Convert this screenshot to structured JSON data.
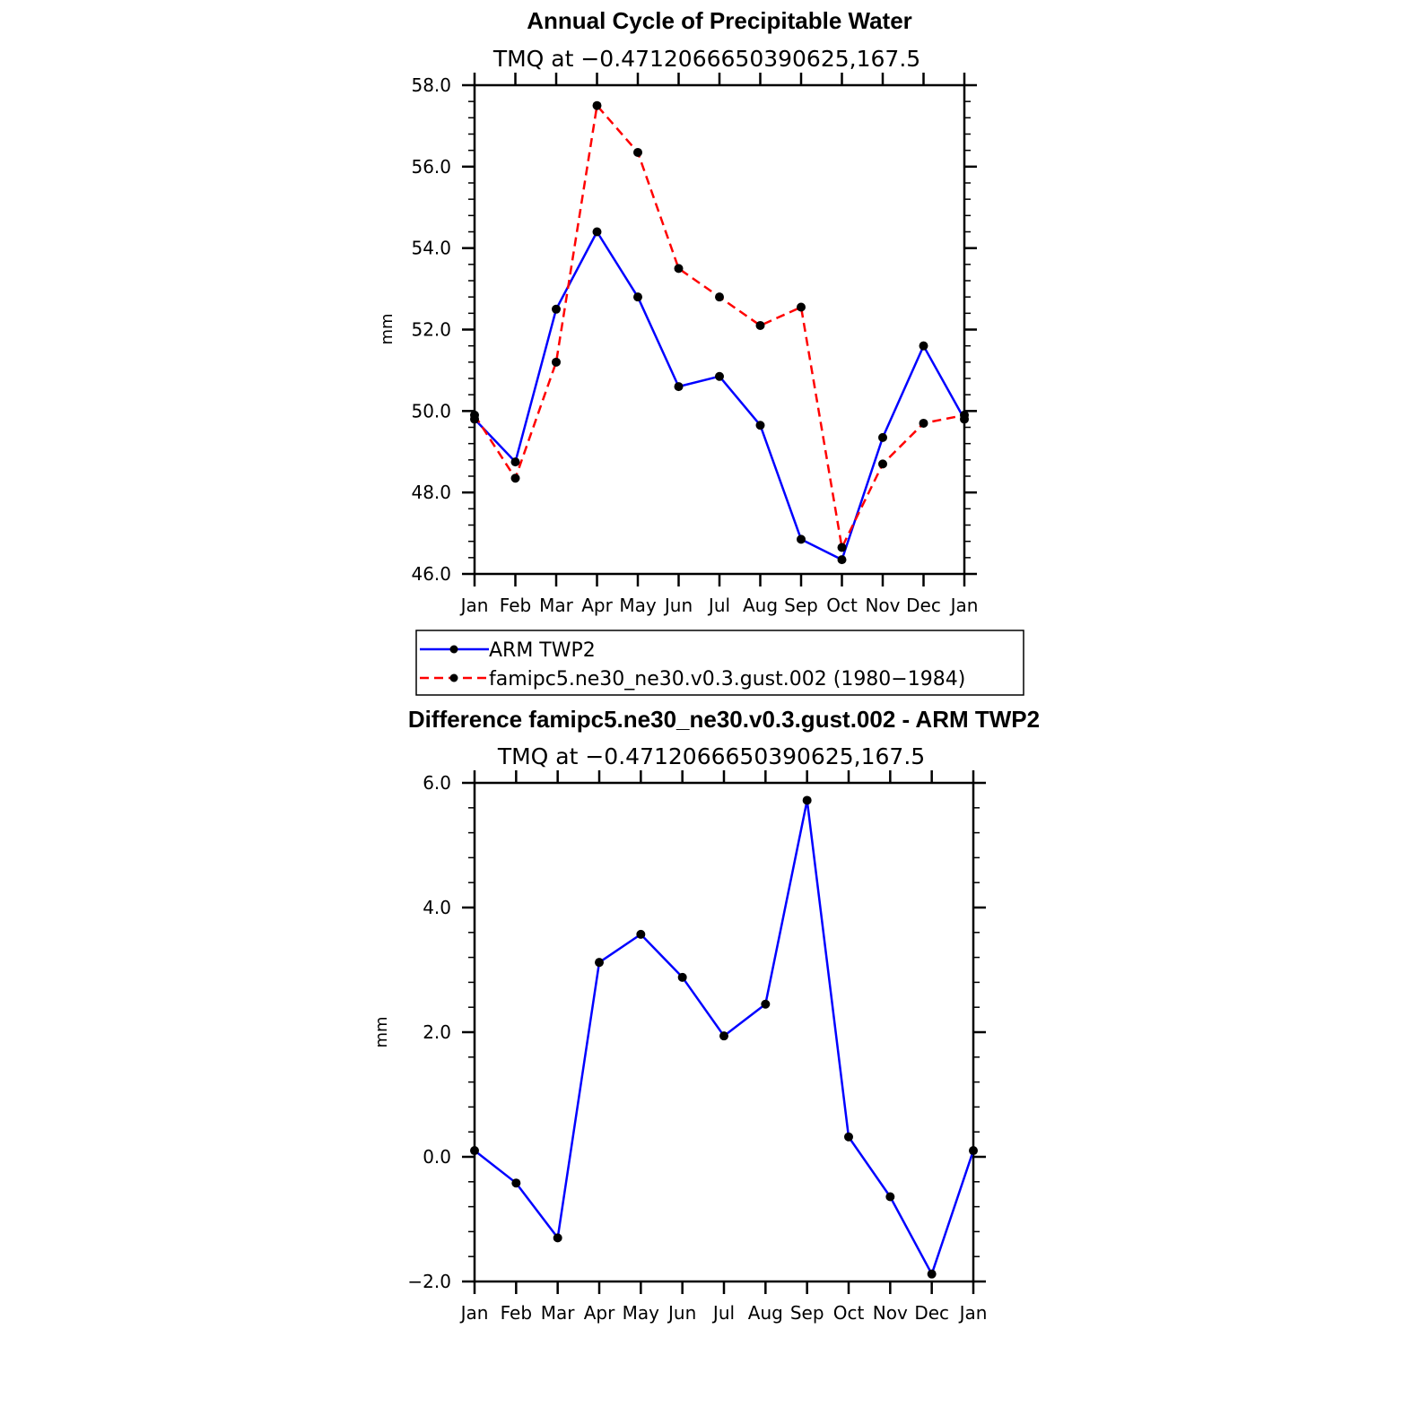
{
  "chart_data": [
    {
      "type": "line",
      "title": "Annual Cycle of Precipitable Water",
      "subtitle": "TMQ at −0.4712066650390625,167.5",
      "xlabel": "",
      "ylabel": "mm",
      "categories": [
        "Jan",
        "Feb",
        "Mar",
        "Apr",
        "May",
        "Jun",
        "Jul",
        "Aug",
        "Sep",
        "Oct",
        "Nov",
        "Dec",
        "Jan"
      ],
      "ylim": [
        46.0,
        58.0
      ],
      "ytick_labels": [
        "46.0",
        "48.0",
        "50.0",
        "52.0",
        "54.0",
        "56.0",
        "58.0"
      ],
      "grid": false,
      "legend": "below",
      "series": [
        {
          "name": "ARM TWP2",
          "color": "#0000ff",
          "style": "solid",
          "marker": "dot",
          "values": [
            49.8,
            48.75,
            52.5,
            54.4,
            52.8,
            50.6,
            50.85,
            49.65,
            46.85,
            46.35,
            49.35,
            51.6,
            49.8
          ]
        },
        {
          "name": "famipc5.ne30_ne30.v0.3.gust.002 (1980−1984)",
          "color": "#ff0000",
          "style": "dashed",
          "marker": "dot",
          "values": [
            49.9,
            48.35,
            51.2,
            57.5,
            56.35,
            53.5,
            52.8,
            52.1,
            52.55,
            46.65,
            48.7,
            49.7,
            49.9
          ]
        }
      ]
    },
    {
      "type": "line",
      "title": "Difference famipc5.ne30_ne30.v0.3.gust.002 - ARM TWP2",
      "subtitle": "TMQ at −0.4712066650390625,167.5",
      "xlabel": "",
      "ylabel": "mm",
      "categories": [
        "Jan",
        "Feb",
        "Mar",
        "Apr",
        "May",
        "Jun",
        "Jul",
        "Aug",
        "Sep",
        "Oct",
        "Nov",
        "Dec",
        "Jan"
      ],
      "ylim": [
        -2.0,
        6.0
      ],
      "ytick_labels": [
        "−2.0",
        "0.0",
        "2.0",
        "4.0",
        "6.0"
      ],
      "grid": false,
      "series": [
        {
          "color": "#0000ff",
          "style": "solid",
          "marker": "dot",
          "values": [
            0.1,
            -0.42,
            -1.3,
            3.12,
            3.57,
            2.88,
            1.94,
            2.45,
            5.72,
            0.32,
            -0.64,
            -1.88,
            0.1
          ]
        }
      ]
    }
  ]
}
